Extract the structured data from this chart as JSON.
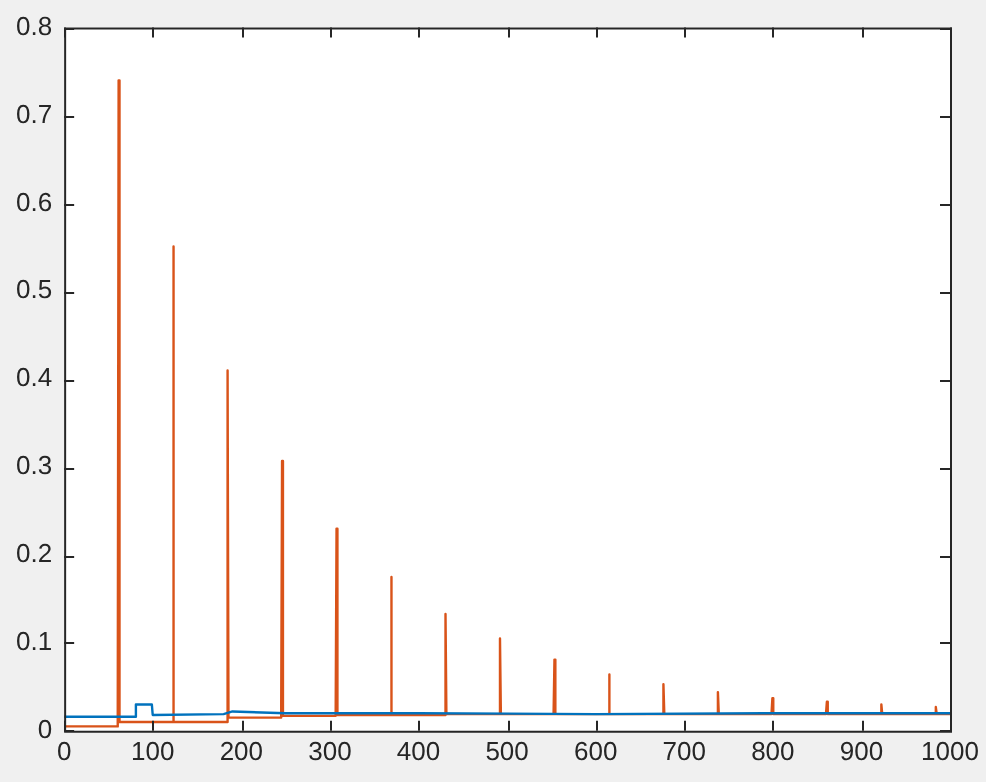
{
  "chart_data": {
    "type": "line",
    "xlim": [
      0,
      1000
    ],
    "xticks": [
      0,
      100,
      200,
      300,
      400,
      500,
      600,
      700,
      800,
      900,
      1000
    ],
    "ylim": [
      0,
      0.8
    ],
    "yticks": [
      0,
      0.1,
      0.2,
      0.3,
      0.4,
      0.5,
      0.6,
      0.7,
      0.8
    ],
    "grid": false,
    "legend": false,
    "marker": "none",
    "line_style": "solid",
    "series": [
      {
        "color": "#0072bd",
        "x": [
          0,
          80,
          81,
          99,
          100,
          180,
          190,
          250,
          400,
          600,
          800,
          1000
        ],
        "values": [
          0.016,
          0.016,
          0.03,
          0.03,
          0.018,
          0.019,
          0.022,
          0.02,
          0.02,
          0.019,
          0.02,
          0.02
        ]
      },
      {
        "color": "#d95319",
        "x": [
          0,
          60.5,
          61.5,
          62.5,
          122,
          123,
          124,
          183.5,
          184.5,
          185.5,
          245,
          246,
          247,
          306.5,
          307.5,
          308.5,
          368,
          369,
          370,
          429.5,
          430.5,
          431.5,
          491,
          492,
          493,
          552.5,
          553.5,
          554.5,
          614,
          615,
          616,
          675.5,
          676.5,
          677.5,
          737,
          738,
          739,
          798.5,
          799.5,
          800.5,
          860,
          861,
          862,
          921.5,
          922.5,
          923.5,
          983,
          984,
          985,
          1000
        ],
        "values": [
          0.005,
          0.005,
          0.74,
          0.01,
          0.01,
          0.551,
          0.01,
          0.01,
          0.41,
          0.015,
          0.015,
          0.307,
          0.017,
          0.017,
          0.23,
          0.018,
          0.018,
          0.175,
          0.018,
          0.018,
          0.133,
          0.019,
          0.019,
          0.105,
          0.019,
          0.019,
          0.081,
          0.019,
          0.019,
          0.064,
          0.019,
          0.019,
          0.053,
          0.019,
          0.019,
          0.044,
          0.019,
          0.019,
          0.037,
          0.019,
          0.019,
          0.033,
          0.019,
          0.019,
          0.03,
          0.019,
          0.019,
          0.027,
          0.019,
          0.019
        ]
      }
    ]
  }
}
